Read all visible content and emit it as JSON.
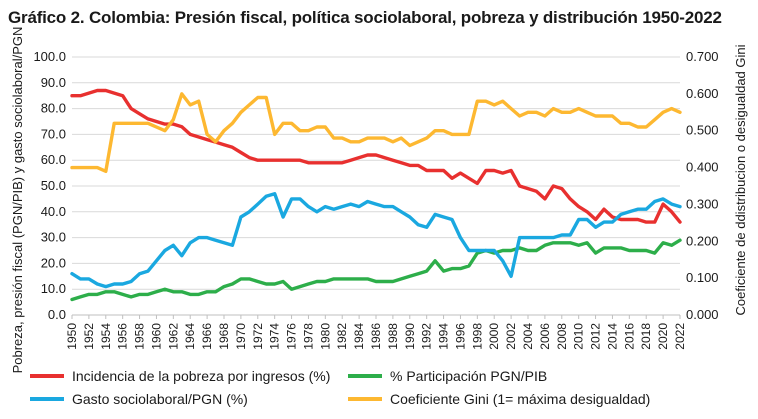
{
  "title": "Gráfico 2. Colombia:  Presión fiscal, política sociolaboral, pobreza y distribución 1950-2022",
  "chart_data": {
    "type": "line",
    "ylabel": "Pobreza, presión fiscal (PGN/PIB) y gasto sociolaboral/PGN",
    "y2label": "Coeficiente de ddistribucion o desigualdad Gini",
    "ylim": [
      0,
      100
    ],
    "y2lim": [
      0,
      0.7
    ],
    "yticks": [
      "0.0",
      "10.0",
      "20.0",
      "30.0",
      "40.0",
      "50.0",
      "60.0",
      "70.0",
      "80.0",
      "90.0",
      "100.0"
    ],
    "y2ticks": [
      "0.000",
      "0.100",
      "0.200",
      "0.300",
      "0.400",
      "0.500",
      "0.600",
      "0.700"
    ],
    "x": [
      1950,
      1951,
      1952,
      1953,
      1954,
      1955,
      1956,
      1957,
      1958,
      1959,
      1960,
      1961,
      1962,
      1963,
      1964,
      1965,
      1966,
      1967,
      1968,
      1969,
      1970,
      1971,
      1972,
      1973,
      1974,
      1975,
      1976,
      1977,
      1978,
      1979,
      1980,
      1981,
      1982,
      1983,
      1984,
      1985,
      1986,
      1987,
      1988,
      1989,
      1990,
      1991,
      1992,
      1993,
      1994,
      1995,
      1996,
      1997,
      1998,
      1999,
      2000,
      2001,
      2002,
      2003,
      2004,
      2005,
      2006,
      2007,
      2008,
      2009,
      2010,
      2011,
      2012,
      2013,
      2014,
      2015,
      2016,
      2017,
      2018,
      2019,
      2020,
      2021,
      2022
    ],
    "xticks": [
      1950,
      1952,
      1954,
      1956,
      1958,
      1960,
      1962,
      1964,
      1966,
      1968,
      1970,
      1972,
      1974,
      1976,
      1978,
      1980,
      1982,
      1984,
      1986,
      1988,
      1990,
      1992,
      1994,
      1996,
      1998,
      2000,
      2002,
      2004,
      2006,
      2008,
      2010,
      2012,
      2014,
      2016,
      2018,
      2020,
      2022
    ],
    "grid": true,
    "legend_position": "bottom",
    "series": [
      {
        "name": "Incidencia de la pobreza por ingresos (%)",
        "color": "#e8302f",
        "axis": "left",
        "values": [
          85,
          85,
          86,
          87,
          87,
          86,
          85,
          80,
          78,
          76,
          75,
          74,
          74,
          73,
          70,
          69,
          68,
          67,
          66,
          65,
          63,
          61,
          60,
          60,
          60,
          60,
          60,
          60,
          59,
          59,
          59,
          59,
          59,
          60,
          61,
          62,
          62,
          61,
          60,
          59,
          58,
          58,
          56,
          56,
          56,
          53,
          55,
          53,
          51,
          56,
          56,
          55,
          56,
          50,
          49,
          48,
          45,
          50,
          49,
          45,
          42,
          40,
          37,
          41,
          38,
          37,
          37,
          37,
          36,
          36,
          43,
          40,
          36
        ]
      },
      {
        "name": "% Participación PGN/PIB",
        "color": "#2dae4a",
        "axis": "left",
        "values": [
          6,
          7,
          8,
          8,
          9,
          9,
          8,
          7,
          8,
          8,
          9,
          10,
          9,
          9,
          8,
          8,
          9,
          9,
          11,
          12,
          14,
          14,
          13,
          12,
          12,
          13,
          10,
          11,
          12,
          13,
          13,
          14,
          14,
          14,
          14,
          14,
          13,
          13,
          13,
          14,
          15,
          16,
          17,
          21,
          17,
          18,
          18,
          19,
          24,
          25,
          24,
          25,
          25,
          26,
          25,
          25,
          27,
          28,
          28,
          28,
          27,
          28,
          24,
          26,
          26,
          26,
          25,
          25,
          25,
          24,
          28,
          27,
          29
        ]
      },
      {
        "name": "Gasto sociolaboral/PGN (%)",
        "color": "#1aa8e0",
        "axis": "left",
        "values": [
          16,
          14,
          14,
          12,
          11,
          12,
          12,
          13,
          16,
          17,
          21,
          25,
          27,
          23,
          28,
          30,
          30,
          29,
          28,
          27,
          38,
          40,
          43,
          46,
          47,
          38,
          45,
          45,
          42,
          40,
          42,
          41,
          42,
          43,
          42,
          44,
          43,
          42,
          42,
          40,
          38,
          35,
          34,
          39,
          38,
          37,
          30,
          25,
          25,
          25,
          25,
          21,
          15,
          30,
          30,
          30,
          30,
          30,
          31,
          31,
          37,
          37,
          34,
          36,
          36,
          39,
          40,
          41,
          41,
          44,
          45,
          43,
          42
        ]
      },
      {
        "name": "Coeficiente  Gini (1= máxima desigualdad)",
        "color": "#fdb831",
        "axis": "right",
        "values": [
          0.4,
          0.4,
          0.4,
          0.4,
          0.39,
          0.52,
          0.52,
          0.52,
          0.52,
          0.52,
          0.51,
          0.5,
          0.53,
          0.6,
          0.57,
          0.58,
          0.49,
          0.47,
          0.5,
          0.52,
          0.55,
          0.57,
          0.59,
          0.59,
          0.49,
          0.52,
          0.52,
          0.5,
          0.5,
          0.51,
          0.51,
          0.48,
          0.48,
          0.47,
          0.47,
          0.48,
          0.48,
          0.48,
          0.47,
          0.48,
          0.46,
          0.47,
          0.48,
          0.5,
          0.5,
          0.49,
          0.49,
          0.49,
          0.58,
          0.58,
          0.57,
          0.58,
          0.56,
          0.54,
          0.55,
          0.55,
          0.54,
          0.56,
          0.55,
          0.55,
          0.56,
          0.55,
          0.54,
          0.54,
          0.54,
          0.52,
          0.52,
          0.51,
          0.51,
          0.53,
          0.55,
          0.56,
          0.55
        ]
      }
    ]
  }
}
